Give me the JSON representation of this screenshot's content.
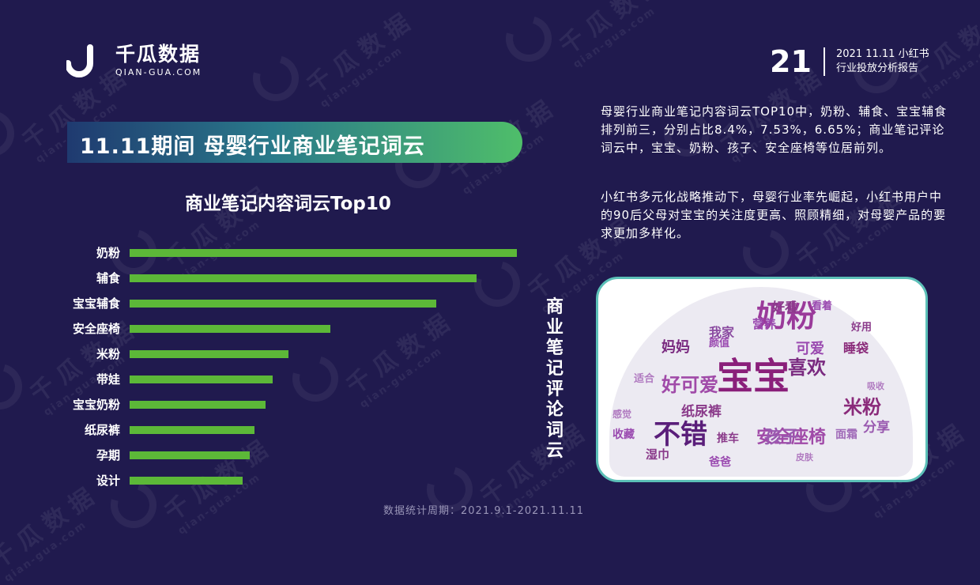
{
  "brand": {
    "name_cn": "千瓜数据",
    "name_en": "QIAN-GUA.COM",
    "watermark_cn": "千瓜数据",
    "watermark_en": "qian-gua.com"
  },
  "header": {
    "page_number": "21",
    "report_line1": "2021 11.11 小红书",
    "report_line2": "行业投放分析报告"
  },
  "title": "11.11期间 母婴行业商业笔记词云",
  "colors": {
    "background": "#201a4e",
    "bar": "#5cb838",
    "cloud_border": "#5cc0b8",
    "cloud_word": "#8a2a8a"
  },
  "chart_data": {
    "type": "bar",
    "orientation": "horizontal",
    "title": "商业笔记内容词云Top10",
    "categories": [
      "奶粉",
      "辅食",
      "宝宝辅食",
      "安全座椅",
      "米粉",
      "带娃",
      "宝宝奶粉",
      "纸尿裤",
      "孕期",
      "设计"
    ],
    "values": [
      8.4,
      7.53,
      6.65,
      4.35,
      3.45,
      3.1,
      2.95,
      2.7,
      2.6,
      2.45
    ],
    "xlabel": "",
    "ylabel": "",
    "grid": false
  },
  "cloud": {
    "title": "商业笔记评论词云",
    "words": [
      {
        "text": "宝宝",
        "size": 46,
        "color": "#8a1f7a"
      },
      {
        "text": "奶粉",
        "size": 38,
        "color": "#9a3a9a"
      },
      {
        "text": "不错",
        "size": 34,
        "color": "#5a1e7a"
      },
      {
        "text": "好可爱",
        "size": 24,
        "color": "#a04aa8"
      },
      {
        "text": "喜欢",
        "size": 24,
        "color": "#7a2a80"
      },
      {
        "text": "米粉",
        "size": 24,
        "color": "#8a2a7a"
      },
      {
        "text": "安全座椅",
        "size": 22,
        "color": "#a04aa8"
      },
      {
        "text": "孩子",
        "size": 22,
        "color": "#9a5ab0"
      },
      {
        "text": "妈妈",
        "size": 18,
        "color": "#7a2a80"
      },
      {
        "text": "纸尿裤",
        "size": 17,
        "color": "#8a3a8a"
      },
      {
        "text": "可爱",
        "size": 18,
        "color": "#9a4ab0"
      },
      {
        "text": "睡袋",
        "size": 16,
        "color": "#8a2a7a"
      },
      {
        "text": "好看",
        "size": 16,
        "color": "#8a3a8a"
      },
      {
        "text": "营养",
        "size": 15,
        "color": "#9a4ab0"
      },
      {
        "text": "我家",
        "size": 16,
        "color": "#8a4aa0"
      },
      {
        "text": "分享",
        "size": 17,
        "color": "#9a5ab0"
      },
      {
        "text": "面霜",
        "size": 14,
        "color": "#a06ab8"
      },
      {
        "text": "湿巾",
        "size": 15,
        "color": "#8a3a8a"
      },
      {
        "text": "推车",
        "size": 14,
        "color": "#8a3a8a"
      },
      {
        "text": "爸爸",
        "size": 14,
        "color": "#9a4ab0"
      },
      {
        "text": "收藏",
        "size": 14,
        "color": "#9a4ab0"
      },
      {
        "text": "感觉",
        "size": 12,
        "color": "#b07ac0"
      },
      {
        "text": "适合",
        "size": 13,
        "color": "#b07ac0"
      },
      {
        "text": "颜值",
        "size": 13,
        "color": "#9a4ab0"
      },
      {
        "text": "看着",
        "size": 13,
        "color": "#9a4ab0"
      },
      {
        "text": "好用",
        "size": 13,
        "color": "#8a3a8a"
      },
      {
        "text": "皮肤",
        "size": 11,
        "color": "#b07ac0"
      },
      {
        "text": "吸收",
        "size": 11,
        "color": "#b07ac0"
      }
    ]
  },
  "description": {
    "p1": "母婴行业商业笔记内容词云TOP10中，奶粉、辅食、宝宝辅食排列前三，分别占比8.4%，7.53%，6.65%；商业笔记评论词云中，宝宝、奶粉、孩子、安全座椅等位居前列。",
    "p2": "小红书多元化战略推动下，母婴行业率先崛起，小红书用户中的90后父母对宝宝的关注度更高、照顾精细，对母婴产品的要求更加多样化。"
  },
  "footer": "数据统计周期：2021.9.1-2021.11.11"
}
